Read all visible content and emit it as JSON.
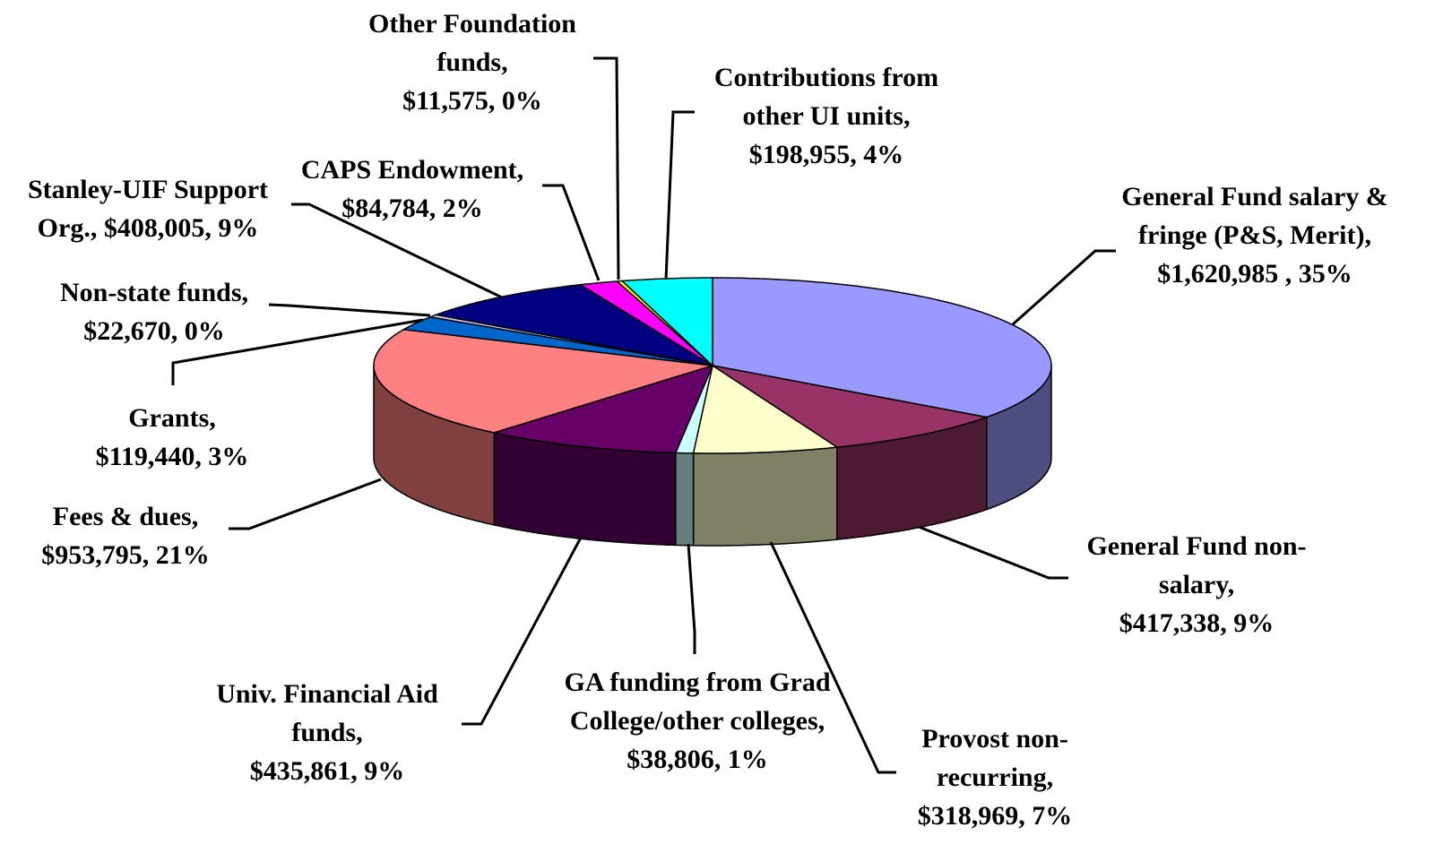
{
  "chart_data": {
    "type": "pie3d",
    "categories": [
      "General Fund salary & fringe (P&S, Merit),",
      "General Fund non-salary,",
      "Provost non-recurring,",
      "GA funding from Grad College/other colleges,",
      "Univ. Financial Aid funds,",
      "Fees & dues,",
      "Grants,",
      "Non-state funds,",
      "Stanley-UIF Support Org.,",
      "CAPS Endowment,",
      "Other Foundation funds,",
      "Contributions from other UI units,"
    ],
    "values": [
      1620985,
      417338,
      318969,
      38806,
      435861,
      953795,
      119440,
      22670,
      408005,
      84784,
      11575,
      198955
    ],
    "value_labels": [
      "$1,620,985 , 35%",
      "$417,338, 9%",
      "$318,969, 7%",
      "$38,806, 1%",
      "$435,861, 9%",
      "$953,795, 21%",
      "$119,440, 3%",
      "$22,670, 0%",
      "$408,005, 9%",
      "$84,784, 2%",
      "$11,575, 0%",
      "$198,955, 4%"
    ],
    "colors": [
      "#9999ff",
      "#993366",
      "#ffffcc",
      "#ccffff",
      "#660066",
      "#ff8080",
      "#0066cc",
      "#ccccff",
      "#000080",
      "#ff00ff",
      "#ffff00",
      "#00ffff"
    ]
  }
}
